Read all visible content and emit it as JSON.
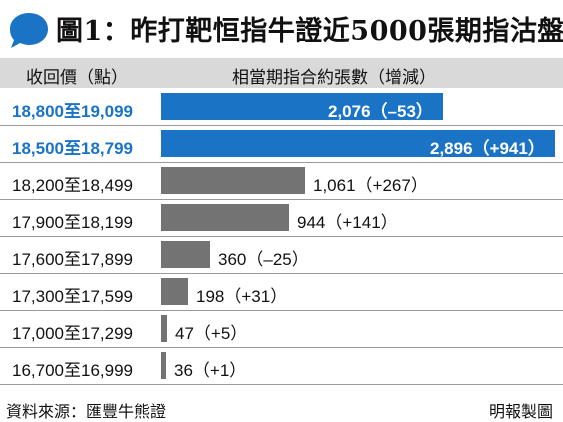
{
  "title": "圖1：昨打靶恒指牛證近5000張期指沽盤",
  "header": {
    "range_label": "收回價（點）",
    "count_label": "相當期指合約張數（增減）"
  },
  "footer": {
    "source": "資料來源：匯豐牛熊證",
    "credit": "明報製圖"
  },
  "colors": {
    "highlight": "#1a73c4",
    "bar": "#737373",
    "header_bg": "#d9d9d9"
  },
  "chart_data": {
    "type": "bar",
    "orientation": "horizontal",
    "title": "圖1：昨打靶恒指牛證近5000張期指沽盤",
    "xlabel": "相當期指合約張數（增減）",
    "ylabel": "收回價（點）",
    "categories": [
      "18,800至19,099",
      "18,500至18,799",
      "18,200至18,499",
      "17,900至18,199",
      "17,600至17,899",
      "17,300至17,599",
      "17,000至17,299",
      "16,700至16,999"
    ],
    "values": [
      2076,
      2896,
      1061,
      944,
      360,
      198,
      47,
      36
    ],
    "value_labels": [
      "2,076（–53）",
      "2,896（+941）",
      "1,061（+267）",
      "944（+141）",
      "360（–25）",
      "198（+31）",
      "47（+5）",
      "36（+1）"
    ],
    "highlighted": [
      true,
      true,
      false,
      false,
      false,
      false,
      false,
      false
    ],
    "xlim": [
      0,
      2896
    ]
  }
}
